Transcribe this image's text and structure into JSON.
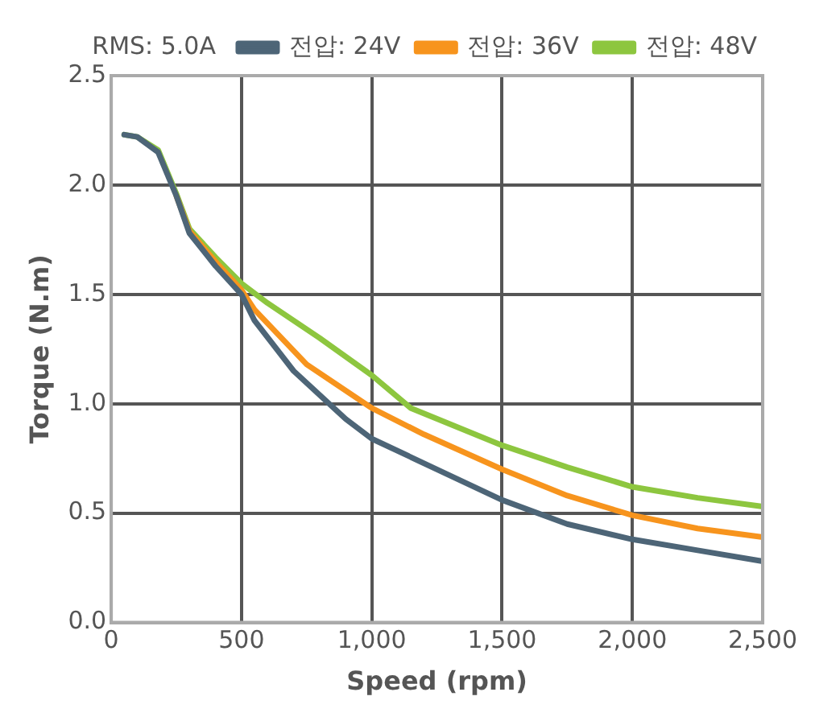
{
  "chart_data": {
    "type": "line",
    "xlabel": "Speed (rpm)",
    "ylabel": "Torque (N.m)",
    "legend_title": "RMS: 5.0A",
    "legend": "top",
    "grid": true,
    "line_style": "solid",
    "marker": "none",
    "xlim": [
      0,
      2500
    ],
    "xticks": [
      0,
      500,
      {
        "value": 1000,
        "label": "1,000"
      },
      {
        "value": 1500,
        "label": "1,500"
      },
      {
        "value": 2000,
        "label": "2,000"
      },
      {
        "value": 2500,
        "label": "2,500"
      }
    ],
    "ylim": [
      0,
      2.5
    ],
    "yticks": [
      {
        "value": 0,
        "label": "0.0"
      },
      0.5,
      {
        "value": 1,
        "label": "1.0"
      },
      1.5,
      {
        "value": 2,
        "label": "2.0"
      },
      2.5
    ],
    "series": [
      {
        "name": "전압: 24V",
        "color": "#4d6577",
        "x": [
          50,
          100,
          180,
          250,
          300,
          400,
          500,
          550,
          700,
          900,
          1000,
          1250,
          1500,
          1750,
          2000,
          2250,
          2500
        ],
        "values": [
          2.23,
          2.22,
          2.15,
          1.95,
          1.78,
          1.63,
          1.5,
          1.38,
          1.15,
          0.93,
          0.84,
          0.7,
          0.56,
          0.45,
          0.38,
          0.33,
          0.28
        ]
      },
      {
        "name": "전압: 36V",
        "color": "#f7941d",
        "x": [
          250,
          300,
          400,
          500,
          550,
          750,
          1000,
          1200,
          1500,
          1750,
          2000,
          2250,
          2500
        ],
        "values": [
          1.95,
          1.79,
          1.65,
          1.52,
          1.43,
          1.18,
          0.98,
          0.86,
          0.7,
          0.58,
          0.49,
          0.43,
          0.39
        ]
      },
      {
        "name": "전압: 48V",
        "color": "#8dc63f",
        "x": [
          50,
          100,
          180,
          250,
          300,
          400,
          500,
          600,
          800,
          1000,
          1150,
          1500,
          1750,
          2000,
          2250,
          2500
        ],
        "values": [
          2.23,
          2.22,
          2.16,
          1.96,
          1.8,
          1.67,
          1.55,
          1.46,
          1.3,
          1.13,
          0.98,
          0.81,
          0.71,
          0.62,
          0.57,
          0.53
        ]
      }
    ]
  }
}
